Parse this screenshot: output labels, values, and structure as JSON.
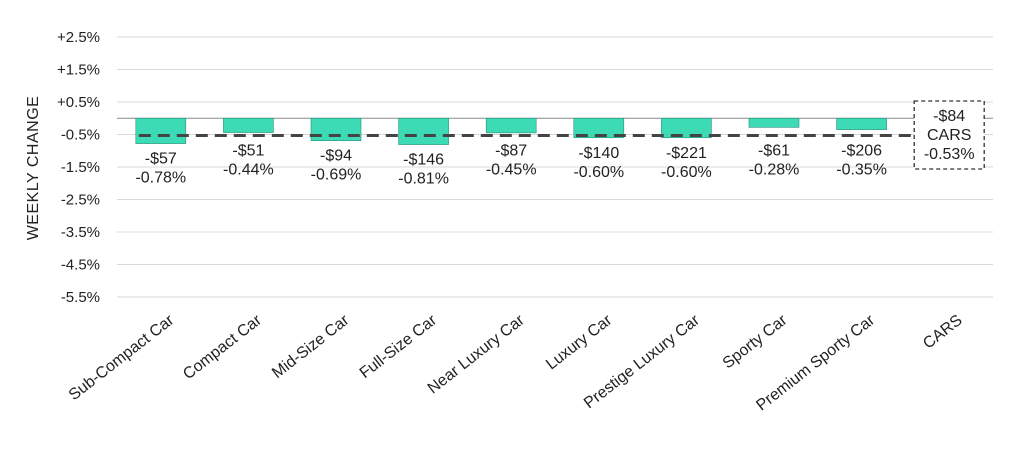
{
  "chart_data": {
    "type": "bar",
    "ylabel": "WEEKLY CHANGE",
    "ylim": [
      -5.5,
      2.5
    ],
    "yticks": [
      2.5,
      1.5,
      0.5,
      -0.5,
      -1.5,
      -2.5,
      -3.5,
      -4.5,
      -5.5
    ],
    "ytick_labels": [
      "+2.5%",
      "+1.5%",
      "+0.5%",
      "-0.5%",
      "-1.5%",
      "-2.5%",
      "-3.5%",
      "-4.5%",
      "-5.5%"
    ],
    "grid": true,
    "categories": [
      "Sub-Compact Car",
      "Compact Car",
      "Mid-Size Car",
      "Full-Size Car",
      "Near Luxury Car",
      "Luxury Car",
      "Prestige Luxury Car",
      "Sporty Car",
      "Premium Sporty Car",
      "CARS"
    ],
    "values": [
      -0.78,
      -0.44,
      -0.69,
      -0.81,
      -0.45,
      -0.6,
      -0.6,
      -0.28,
      -0.35,
      null
    ],
    "dollar_labels": [
      "-$57",
      "-$51",
      "-$94",
      "-$146",
      "-$87",
      "-$140",
      "-$221",
      "-$61",
      "-$206",
      "-$84"
    ],
    "percent_labels": [
      "-0.78%",
      "-0.44%",
      "-0.69%",
      "-0.81%",
      "-0.45%",
      "-0.60%",
      "-0.60%",
      "-0.28%",
      "-0.35%",
      "-0.53%"
    ],
    "reference_line": {
      "name": "CARS",
      "value": -0.53,
      "dollar_label": "-$84",
      "percent_label": "-0.53%"
    },
    "colors": {
      "bar": "#3ddbb5",
      "bar_stroke": "#2b8f78",
      "reference": "#444444",
      "grid": "#d9d9d9"
    }
  }
}
